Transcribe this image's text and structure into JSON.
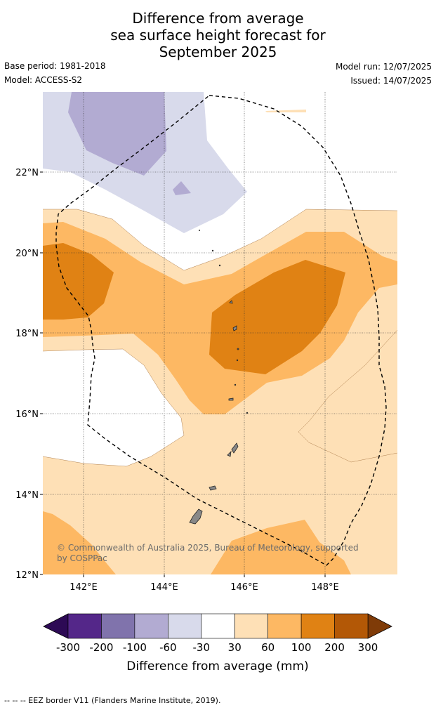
{
  "title": {
    "line1": "Difference from average",
    "line2": "sea surface height forecast for",
    "line3": "September 2025"
  },
  "meta": {
    "base_period": "Base period: 1981-2018",
    "model": "Model: ACCESS-S2",
    "model_run": "Model run: 12/07/2025",
    "issued": "Issued: 14/07/2025"
  },
  "map": {
    "lat_labels": [
      "22°N",
      "20°N",
      "18°N",
      "16°N",
      "14°N",
      "12°N"
    ],
    "lon_labels": [
      "142°E",
      "144°E",
      "146°E",
      "148°E"
    ],
    "copyright_line1": "© Commonwealth of Australia 2025, Bureau of Meteorology, supported",
    "copyright_line2": "by COSPPac"
  },
  "colorbar": {
    "tick_labels": [
      "-300",
      "-200",
      "-100",
      "-60",
      "-30",
      "30",
      "60",
      "100",
      "200",
      "300"
    ],
    "title": "Difference from average (mm)",
    "colors": [
      "#2d0a55",
      "#542789",
      "#8073ac",
      "#b2abd2",
      "#d8daeb",
      "#ffffff",
      "#fee0b6",
      "#fdb863",
      "#e08214",
      "#b35806",
      "#7f3b08"
    ]
  },
  "footer": {
    "legend": "--  --  -- EEZ border V11 (Flanders Marine Institute, 2019)."
  }
}
